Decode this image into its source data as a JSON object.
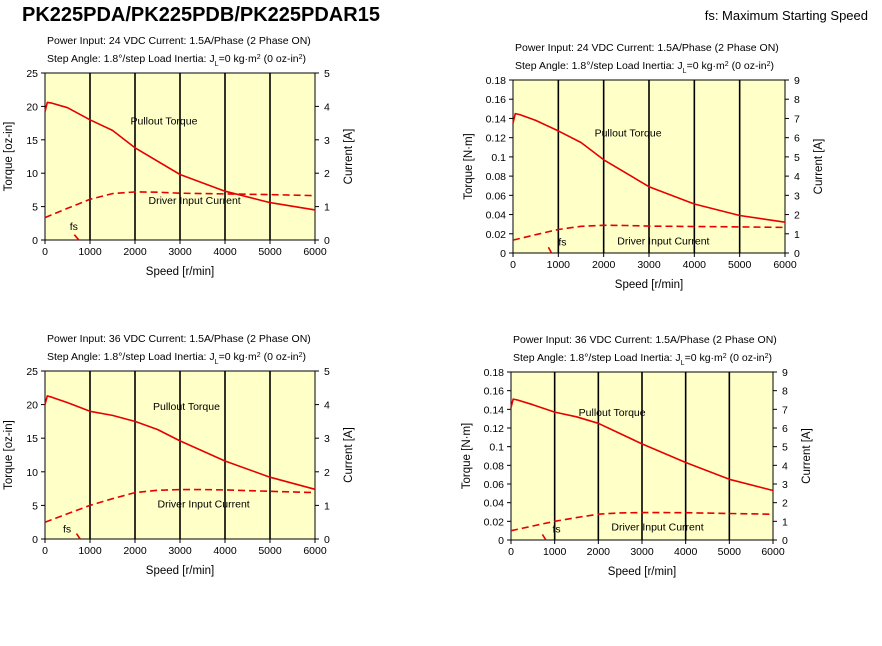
{
  "header": {
    "title": "PK225PDA/PK225PDB/PK225PDAR15",
    "note": "fs: Maximum Starting Speed"
  },
  "style": {
    "plot_background": "#ffffc8",
    "curve_color": "#e60000",
    "axis_color": "#000000"
  },
  "chart_data": [
    {
      "type": "line",
      "condition_line1": "Power Input: 24 VDC  Current: 1.5A/Phase (2 Phase ON)",
      "condition_line2_prefix": "Step Angle: 1.8°/step  Load Inertia: J",
      "condition_line2_sub": "L",
      "condition_line2_mid": "=0 kg·m",
      "condition_line2_sup": "2",
      "condition_line2_end": " (0 oz-in",
      "condition_line2_sup2": "2",
      "condition_line2_close": ")",
      "xlabel": "Speed [r/min]",
      "ylabel": "Torque [oz-in]",
      "y2label": "Current [A]",
      "xlim": [
        0,
        6000
      ],
      "ylim": [
        0,
        25
      ],
      "y2lim": [
        0,
        5
      ],
      "xticks": [
        "0",
        "1000",
        "2000",
        "3000",
        "4000",
        "5000",
        "6000"
      ],
      "yticks": [
        "0",
        "5",
        "10",
        "15",
        "20",
        "25"
      ],
      "y2ticks": [
        "0",
        "1",
        "2",
        "3",
        "4",
        "5"
      ],
      "grid": "vertical",
      "series": [
        {
          "name": "Pullout Torque",
          "axis": "left",
          "dash": false,
          "x": [
            0,
            50,
            150,
            500,
            1000,
            1500,
            2000,
            3000,
            4000,
            5000,
            6000
          ],
          "y": [
            19.2,
            20.6,
            20.5,
            19.8,
            18.0,
            16.4,
            13.8,
            9.8,
            7.3,
            5.6,
            4.5
          ]
        },
        {
          "name": "Driver Input Current",
          "axis": "right",
          "dash": true,
          "x": [
            0,
            500,
            1000,
            1500,
            2000,
            2500,
            3000,
            4000,
            5000,
            6000
          ],
          "y": [
            0.67,
            0.95,
            1.22,
            1.39,
            1.44,
            1.43,
            1.4,
            1.38,
            1.36,
            1.33
          ]
        },
        {
          "name": "fs",
          "axis": "left",
          "dash": false,
          "x": [
            650,
            750
          ],
          "y": [
            0.8,
            0
          ]
        }
      ],
      "annotations": [
        {
          "text": "Pullout Torque",
          "x": 1900,
          "y": 17.3
        },
        {
          "text": "Driver Input Current",
          "x": 2300,
          "y": 5.4
        },
        {
          "text": "fs",
          "x": 550,
          "y": 1.5
        }
      ]
    },
    {
      "type": "line",
      "condition_line1": "Power Input: 24 VDC  Current: 1.5A/Phase (2 Phase ON)",
      "condition_line2_prefix": "Step Angle: 1.8°/step  Load Inertia: J",
      "condition_line2_sub": "L",
      "condition_line2_mid": "=0 kg·m",
      "condition_line2_sup": "2",
      "condition_line2_end": " (0 oz-in",
      "condition_line2_sup2": "2",
      "condition_line2_close": ")",
      "xlabel": "Speed [r/min]",
      "ylabel": "Torque [N·m]",
      "y2label": "Current [A]",
      "xlim": [
        0,
        6000
      ],
      "ylim": [
        0,
        0.18
      ],
      "y2lim": [
        0,
        9
      ],
      "xticks": [
        "0",
        "1000",
        "2000",
        "3000",
        "4000",
        "5000",
        "6000"
      ],
      "yticks": [
        "0",
        "0.02",
        "0.04",
        "0.06",
        "0.08",
        "0.1",
        "0.12",
        "0.14",
        "0.16",
        "0.18"
      ],
      "y2ticks": [
        "0",
        "1",
        "2",
        "3",
        "4",
        "5",
        "6",
        "7",
        "8",
        "9"
      ],
      "grid": "vertical",
      "series": [
        {
          "name": "Pullout Torque",
          "axis": "left",
          "dash": false,
          "x": [
            0,
            50,
            150,
            500,
            1000,
            1500,
            2000,
            3000,
            4000,
            5000,
            6000
          ],
          "y": [
            0.135,
            0.145,
            0.144,
            0.138,
            0.127,
            0.115,
            0.097,
            0.069,
            0.051,
            0.039,
            0.032
          ]
        },
        {
          "name": "Driver Input Current",
          "axis": "right",
          "dash": true,
          "x": [
            0,
            500,
            1000,
            1500,
            2000,
            2500,
            3000,
            4000,
            5000,
            6000
          ],
          "y": [
            0.67,
            0.95,
            1.22,
            1.39,
            1.44,
            1.43,
            1.4,
            1.38,
            1.36,
            1.33
          ]
        },
        {
          "name": "fs",
          "axis": "left",
          "dash": false,
          "x": [
            780,
            850
          ],
          "y": [
            0.006,
            0
          ]
        }
      ],
      "annotations": [
        {
          "text": "Pullout Torque",
          "x": 1800,
          "y": 0.121
        },
        {
          "text": "Driver Input Current",
          "x": 2300,
          "y": 0.009
        },
        {
          "text": "fs",
          "x": 1000,
          "y": 0.008
        }
      ]
    },
    {
      "type": "line",
      "condition_line1": "Power Input: 36 VDC  Current: 1.5A/Phase (2 Phase ON)",
      "condition_line2_prefix": "Step Angle: 1.8°/step  Load Inertia: J",
      "condition_line2_sub": "L",
      "condition_line2_mid": "=0 kg·m",
      "condition_line2_sup": "2",
      "condition_line2_end": " (0 oz-in",
      "condition_line2_sup2": "2",
      "condition_line2_close": ")",
      "xlabel": "Speed [r/min]",
      "ylabel": "Torque [oz-in]",
      "y2label": "Current [A]",
      "xlim": [
        0,
        6000
      ],
      "ylim": [
        0,
        25
      ],
      "y2lim": [
        0,
        5
      ],
      "xticks": [
        "0",
        "1000",
        "2000",
        "3000",
        "4000",
        "5000",
        "6000"
      ],
      "yticks": [
        "0",
        "5",
        "10",
        "15",
        "20",
        "25"
      ],
      "y2ticks": [
        "0",
        "1",
        "2",
        "3",
        "4",
        "5"
      ],
      "grid": "vertical",
      "series": [
        {
          "name": "Pullout Torque",
          "axis": "left",
          "dash": false,
          "x": [
            0,
            50,
            150,
            500,
            1000,
            1500,
            2000,
            2500,
            3000,
            4000,
            5000,
            6000
          ],
          "y": [
            20.0,
            21.3,
            21.1,
            20.3,
            19.0,
            18.4,
            17.5,
            16.3,
            14.6,
            11.6,
            9.2,
            7.4
          ]
        },
        {
          "name": "Driver Input Current",
          "axis": "right",
          "dash": true,
          "x": [
            0,
            500,
            1000,
            1500,
            2000,
            2500,
            3000,
            3500,
            4000,
            5000,
            6000
          ],
          "y": [
            0.5,
            0.75,
            1.0,
            1.2,
            1.38,
            1.45,
            1.47,
            1.47,
            1.46,
            1.42,
            1.38
          ]
        },
        {
          "name": "fs",
          "axis": "left",
          "dash": false,
          "x": [
            700,
            780
          ],
          "y": [
            0.8,
            0
          ]
        }
      ],
      "annotations": [
        {
          "text": "Pullout Torque",
          "x": 2400,
          "y": 19.2
        },
        {
          "text": "Driver Input Current",
          "x": 2500,
          "y": 4.7
        },
        {
          "text": "fs",
          "x": 400,
          "y": 1.0
        }
      ]
    },
    {
      "type": "line",
      "condition_line1": "Power Input: 36 VDC  Current: 1.5A/Phase (2 Phase ON)",
      "condition_line2_prefix": "Step Angle: 1.8°/step  Load Inertia: J",
      "condition_line2_sub": "L",
      "condition_line2_mid": "=0 kg·m",
      "condition_line2_sup": "2",
      "condition_line2_end": " (0 oz-in",
      "condition_line2_sup2": "2",
      "condition_line2_close": ")",
      "xlabel": "Speed [r/min]",
      "ylabel": "Torque [N·m]",
      "y2label": "Current [A]",
      "xlim": [
        0,
        6000
      ],
      "ylim": [
        0,
        0.18
      ],
      "y2lim": [
        0,
        9
      ],
      "xticks": [
        "0",
        "1000",
        "2000",
        "3000",
        "4000",
        "5000",
        "6000"
      ],
      "yticks": [
        "0",
        "0.02",
        "0.04",
        "0.06",
        "0.08",
        "0.1",
        "0.12",
        "0.14",
        "0.16",
        "0.18"
      ],
      "y2ticks": [
        "0",
        "1",
        "2",
        "3",
        "4",
        "5",
        "6",
        "7",
        "8",
        "9"
      ],
      "grid": "vertical",
      "series": [
        {
          "name": "Pullout Torque",
          "axis": "left",
          "dash": false,
          "x": [
            0,
            50,
            150,
            500,
            1000,
            1500,
            2000,
            2500,
            3000,
            4000,
            5000,
            6000
          ],
          "y": [
            0.142,
            0.151,
            0.15,
            0.145,
            0.137,
            0.132,
            0.125,
            0.114,
            0.103,
            0.083,
            0.065,
            0.053
          ]
        },
        {
          "name": "Driver Input Current",
          "axis": "right",
          "dash": true,
          "x": [
            0,
            500,
            1000,
            1500,
            2000,
            2500,
            3000,
            3500,
            4000,
            5000,
            6000
          ],
          "y": [
            0.5,
            0.75,
            1.0,
            1.2,
            1.38,
            1.45,
            1.47,
            1.47,
            1.46,
            1.42,
            1.38
          ]
        },
        {
          "name": "fs",
          "axis": "left",
          "dash": false,
          "x": [
            720,
            800
          ],
          "y": [
            0.006,
            0
          ]
        }
      ],
      "annotations": [
        {
          "text": "Pullout Torque",
          "x": 1550,
          "y": 0.133
        },
        {
          "text": "Driver Input Current",
          "x": 2300,
          "y": 0.01
        },
        {
          "text": "fs",
          "x": 950,
          "y": 0.008
        }
      ]
    }
  ]
}
